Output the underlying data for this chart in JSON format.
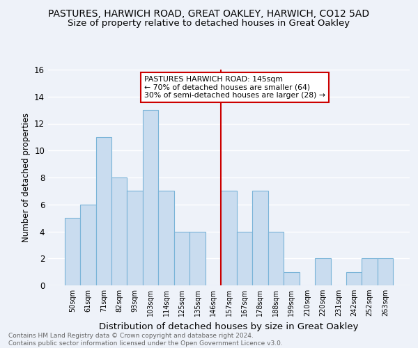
{
  "title": "PASTURES, HARWICH ROAD, GREAT OAKLEY, HARWICH, CO12 5AD",
  "subtitle": "Size of property relative to detached houses in Great Oakley",
  "xlabel": "Distribution of detached houses by size in Great Oakley",
  "ylabel": "Number of detached properties",
  "categories": [
    "50sqm",
    "61sqm",
    "71sqm",
    "82sqm",
    "93sqm",
    "103sqm",
    "114sqm",
    "125sqm",
    "135sqm",
    "146sqm",
    "157sqm",
    "167sqm",
    "178sqm",
    "188sqm",
    "199sqm",
    "210sqm",
    "220sqm",
    "231sqm",
    "242sqm",
    "252sqm",
    "263sqm"
  ],
  "values": [
    5,
    6,
    11,
    8,
    7,
    13,
    7,
    4,
    4,
    0,
    7,
    4,
    7,
    4,
    1,
    0,
    2,
    0,
    1,
    2,
    2
  ],
  "bar_color": "#c9dcef",
  "bar_edgecolor": "#7ab4d8",
  "ref_line_index": 9,
  "annotation_title": "PASTURES HARWICH ROAD: 145sqm",
  "annotation_line1": "← 70% of detached houses are smaller (64)",
  "annotation_line2": "30% of semi-detached houses are larger (28) →",
  "annotation_box_edgecolor": "#cc0000",
  "ylim": [
    0,
    16
  ],
  "yticks": [
    0,
    2,
    4,
    6,
    8,
    10,
    12,
    14,
    16
  ],
  "background_color": "#eef2f9",
  "grid_color": "#ffffff",
  "footnote": "Contains HM Land Registry data © Crown copyright and database right 2024.\nContains public sector information licensed under the Open Government Licence v3.0.",
  "title_fontsize": 10,
  "subtitle_fontsize": 9.5,
  "xlabel_fontsize": 9.5,
  "ylabel_fontsize": 8.5,
  "footnote_fontsize": 6.5,
  "footnote_color": "#666666"
}
